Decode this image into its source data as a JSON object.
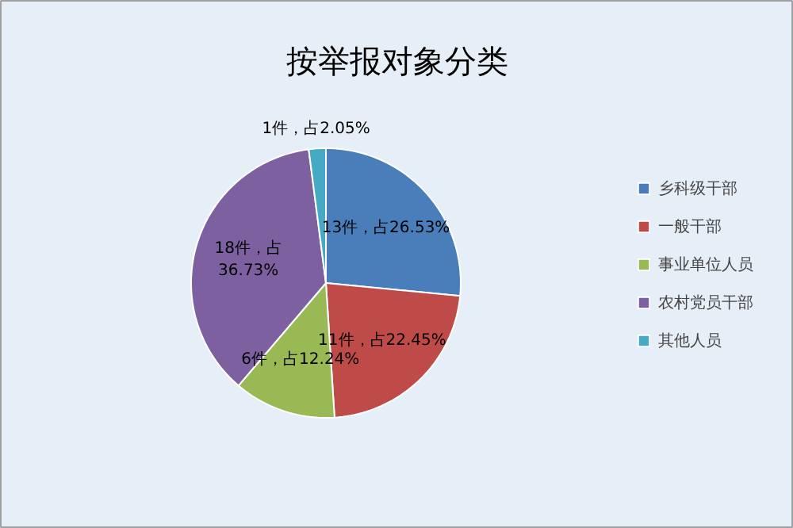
{
  "chart_data": {
    "type": "pie",
    "title": "按举报对象分类",
    "categories": [
      "乡科级干部",
      "一般干部",
      "事业单位人员",
      "农村党员干部",
      "其他人员"
    ],
    "values": [
      13,
      11,
      6,
      18,
      1
    ],
    "colors": [
      "#4a7ebb",
      "#be4b48",
      "#98b954",
      "#7d60a0",
      "#46aac5"
    ],
    "value_labels": [
      "13件，占26.53%",
      "11件，占22.45%",
      "6件，占12.24%",
      "18件，占36.73%",
      "1件，占2.05%"
    ],
    "legend": "right"
  }
}
